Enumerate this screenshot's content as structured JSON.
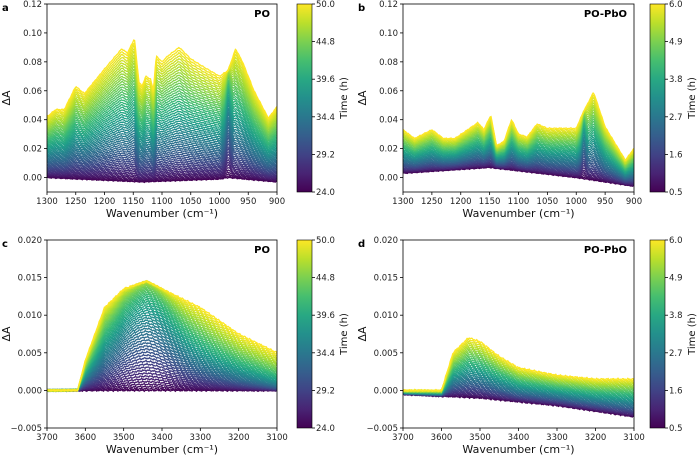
{
  "chart_data": [
    {
      "type": "line",
      "letter": "a",
      "title": "PO",
      "xlabel": "Wavenumber (cm⁻¹)",
      "ylabel": "ΔA",
      "xlim": [
        1300,
        900
      ],
      "ylim": [
        -0.01,
        0.12
      ],
      "xticks": [
        1300,
        1250,
        1200,
        1150,
        1100,
        1050,
        1000,
        950,
        900
      ],
      "yticks": [
        "0.00",
        "0.02",
        "0.04",
        "0.06",
        "0.08",
        "0.10",
        "0.12"
      ],
      "colorbar": {
        "label": "Time (h)",
        "range": [
          24.0,
          50.0
        ],
        "ticks": [
          "24.0",
          "29.2",
          "34.4",
          "39.6",
          "44.8",
          "50.0"
        ]
      },
      "n_curves": 60,
      "final_spectrum": {
        "x": [
          1300,
          1285,
          1270,
          1250,
          1235,
          1200,
          1170,
          1160,
          1148,
          1140,
          1135,
          1128,
          1120,
          1115,
          1110,
          1100,
          1090,
          1070,
          1050,
          1030,
          1000,
          985,
          972,
          960,
          940,
          915,
          900
        ],
        "y": [
          0.042,
          0.047,
          0.047,
          0.063,
          0.058,
          0.075,
          0.089,
          0.086,
          0.096,
          0.066,
          0.063,
          0.07,
          0.068,
          0.06,
          0.084,
          0.08,
          0.084,
          0.09,
          0.082,
          0.077,
          0.07,
          0.074,
          0.089,
          0.08,
          0.06,
          0.041,
          0.049
        ]
      },
      "initial_spectrum": {
        "x": [
          1300,
          1135,
          1000,
          985,
          900
        ],
        "y": [
          0.0,
          -0.003,
          -0.001,
          0.0,
          -0.003
        ]
      }
    },
    {
      "type": "line",
      "letter": "b",
      "title": "PO-PbO",
      "xlabel": "Wavenumber (cm⁻¹)",
      "ylabel": "ΔA",
      "xlim": [
        1300,
        900
      ],
      "ylim": [
        -0.01,
        0.12
      ],
      "xticks": [
        1300,
        1250,
        1200,
        1150,
        1100,
        1050,
        1000,
        950,
        900
      ],
      "yticks": [
        "0.00",
        "0.02",
        "0.04",
        "0.06",
        "0.08",
        "0.10",
        "0.12"
      ],
      "colorbar": {
        "label": "Time (h)",
        "range": [
          0.5,
          6.0
        ],
        "ticks": [
          "0.5",
          "1.6",
          "2.7",
          "3.8",
          "4.9",
          "6.0"
        ]
      },
      "n_curves": 45,
      "final_spectrum": {
        "x": [
          1300,
          1280,
          1250,
          1230,
          1210,
          1170,
          1160,
          1148,
          1138,
          1125,
          1112,
          1100,
          1085,
          1068,
          1050,
          1000,
          988,
          970,
          950,
          915,
          900
        ],
        "y": [
          0.033,
          0.027,
          0.033,
          0.027,
          0.027,
          0.038,
          0.033,
          0.043,
          0.022,
          0.025,
          0.04,
          0.03,
          0.028,
          0.037,
          0.034,
          0.034,
          0.045,
          0.059,
          0.035,
          0.012,
          0.02
        ]
      },
      "initial_spectrum": {
        "x": [
          1300,
          1150,
          1000,
          900
        ],
        "y": [
          0.003,
          0.007,
          0.0,
          -0.006
        ]
      }
    },
    {
      "type": "line",
      "letter": "c",
      "title": "PO",
      "xlabel": "Wavenumber (cm⁻¹)",
      "ylabel": "ΔA",
      "xlim": [
        3700,
        3100
      ],
      "ylim": [
        -0.005,
        0.02
      ],
      "xticks": [
        3700,
        3600,
        3500,
        3400,
        3300,
        3200,
        3100
      ],
      "yticks": [
        "−0.005",
        "0.000",
        "0.005",
        "0.010",
        "0.015",
        "0.020"
      ],
      "colorbar": {
        "label": "Time (h)",
        "range": [
          24.0,
          50.0
        ],
        "ticks": [
          "24.0",
          "29.2",
          "34.4",
          "39.6",
          "44.8",
          "50.0"
        ]
      },
      "n_curves": 55,
      "final_spectrum": {
        "x": [
          3700,
          3650,
          3620,
          3600,
          3550,
          3500,
          3440,
          3400,
          3300,
          3200,
          3100
        ],
        "y": [
          0.0,
          0.0,
          0.0,
          0.004,
          0.011,
          0.0135,
          0.0145,
          0.0135,
          0.011,
          0.0075,
          0.005
        ]
      },
      "initial_spectrum": {
        "x": [
          3700,
          3100
        ],
        "y": [
          0.0,
          0.0
        ]
      }
    },
    {
      "type": "line",
      "letter": "d",
      "title": "PO-PbO",
      "xlabel": "Wavenumber (cm⁻¹)",
      "ylabel": "ΔA",
      "xlim": [
        3700,
        3100
      ],
      "ylim": [
        -0.005,
        0.02
      ],
      "xticks": [
        3700,
        3600,
        3500,
        3400,
        3300,
        3200,
        3100
      ],
      "yticks": [
        "−0.005",
        "0.000",
        "0.005",
        "0.010",
        "0.015",
        "0.020"
      ],
      "colorbar": {
        "label": "Time (h)",
        "range": [
          0.5,
          6.0
        ],
        "ticks": [
          "0.5",
          "1.6",
          "2.7",
          "3.8",
          "4.9",
          "6.0"
        ]
      },
      "n_curves": 40,
      "final_spectrum": {
        "x": [
          3700,
          3600,
          3570,
          3530,
          3500,
          3450,
          3400,
          3300,
          3200,
          3100
        ],
        "y": [
          0.0,
          0.0,
          0.005,
          0.007,
          0.0065,
          0.0045,
          0.003,
          0.002,
          0.0015,
          0.0015
        ]
      },
      "initial_spectrum": {
        "x": [
          3700,
          3500,
          3300,
          3100
        ],
        "y": [
          -0.0005,
          -0.001,
          -0.002,
          -0.0035
        ]
      }
    }
  ]
}
